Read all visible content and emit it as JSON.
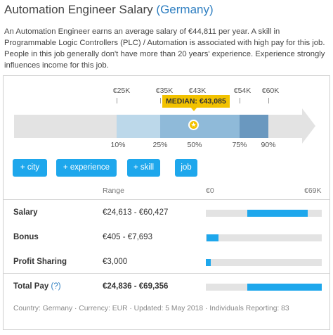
{
  "header": {
    "title": "Automation Engineer Salary",
    "country": "(Germany)"
  },
  "description": "An Automation Engineer earns an average salary of €44,811 per year. A skill in Programmable Logic Controllers (PLC) / Automation is associated with high pay for this job. People in this job generally don't have more than 20 years' experience. Experience strongly influences income for this job.",
  "percentiles": {
    "top_labels": [
      "€25K",
      "€35K",
      "€43K",
      "€54K",
      "€60K"
    ],
    "bottom_labels": [
      "10%",
      "25%",
      "50%",
      "75%",
      "90%"
    ],
    "median_label": "MEDIAN: €43,085",
    "colors": {
      "p10_25": "#bcd8ea",
      "p25_75": "#8fbad9",
      "p75_90": "#6a98bf",
      "median": "#f2c200"
    }
  },
  "filters": [
    "+ city",
    "+ experience",
    "+ skill",
    "job"
  ],
  "table": {
    "range_header": "Range",
    "min_header": "€0",
    "max_header": "€69K",
    "rows": [
      {
        "label": "Salary",
        "range": "€24,613 - €60,427",
        "bar_start": 0.357,
        "bar_end": 0.876
      },
      {
        "label": "Bonus",
        "range": "€405 - €7,693",
        "bar_start": 0.006,
        "bar_end": 0.111
      },
      {
        "label": "Profit Sharing",
        "range": "€3,000",
        "bar_start": 0.0,
        "bar_end": 0.043
      },
      {
        "label": "Total Pay",
        "help": "(?)",
        "range": "€24,836 - €69,356",
        "bar_start": 0.36,
        "bar_end": 1.0
      }
    ]
  },
  "footer": "Country: Germany · Currency: EUR · Updated: 5 May 2018 · Individuals Reporting: 83",
  "accent_color": "#1ea7ec"
}
